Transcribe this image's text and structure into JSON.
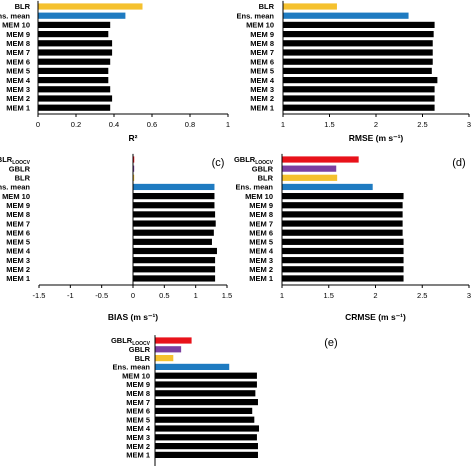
{
  "colors": {
    "GBLR_LOOCV": "#e8121a",
    "GBLR": "#7b3fa0",
    "BLR": "#f5c12e",
    "Ens. mean": "#1f7bc1",
    "MEM": "#000000"
  },
  "chart_data": [
    {
      "type": "bar",
      "orientation": "horizontal",
      "categories": [
        "BLR",
        "Ens. mean",
        "MEM 10",
        "MEM 9",
        "MEM 8",
        "MEM 7",
        "MEM 6",
        "MEM 5",
        "MEM 4",
        "MEM 3",
        "MEM 2",
        "MEM 1"
      ],
      "values": [
        0.55,
        0.46,
        0.38,
        0.37,
        0.39,
        0.39,
        0.38,
        0.37,
        0.37,
        0.38,
        0.39,
        0.38
      ],
      "xlim": [
        0,
        1
      ],
      "xticks": [
        "0",
        "0.2",
        "0.4",
        "0.6",
        "0.8",
        "1"
      ],
      "xlabel": "R²",
      "panel_label": ""
    },
    {
      "type": "bar",
      "orientation": "horizontal",
      "categories": [
        "BLR",
        "Ens. mean",
        "MEM 10",
        "MEM 9",
        "MEM 8",
        "MEM 7",
        "MEM 6",
        "MEM 5",
        "MEM 4",
        "MEM 3",
        "MEM 2",
        "MEM 1"
      ],
      "values": [
        1.58,
        2.35,
        2.63,
        2.62,
        2.61,
        2.61,
        2.61,
        2.6,
        2.66,
        2.63,
        2.63,
        2.63
      ],
      "xlim": [
        1,
        3
      ],
      "xticks": [
        "1",
        "1.5",
        "2",
        "2.5",
        "3"
      ],
      "xlabel": "RMSE (m s⁻¹)",
      "panel_label": ""
    },
    {
      "type": "bar",
      "orientation": "horizontal",
      "categories": [
        "GBLR_LOOCV",
        "GBLR",
        "BLR",
        "Ens. mean",
        "MEM 10",
        "MEM 9",
        "MEM 8",
        "MEM 7",
        "MEM 6",
        "MEM 5",
        "MEM 4",
        "MEM 3",
        "MEM 2",
        "MEM 1"
      ],
      "values": [
        0.02,
        0.01,
        0.01,
        1.3,
        1.3,
        1.3,
        1.31,
        1.32,
        1.29,
        1.26,
        1.34,
        1.31,
        1.31,
        1.31
      ],
      "xlim": [
        -1.5,
        1.5
      ],
      "xticks": [
        "-1.5",
        "-1",
        "-0.5",
        "0",
        "0.5",
        "1",
        "1.5"
      ],
      "xlabel": "BIAS (m s⁻¹)",
      "panel_label": "(c)"
    },
    {
      "type": "bar",
      "orientation": "horizontal",
      "categories": [
        "GBLR_LOOCV",
        "GBLR",
        "BLR",
        "Ens. mean",
        "MEM 10",
        "MEM 9",
        "MEM 8",
        "MEM 7",
        "MEM 6",
        "MEM 5",
        "MEM 4",
        "MEM 3",
        "MEM 2",
        "MEM 1"
      ],
      "values": [
        1.82,
        1.58,
        1.59,
        1.97,
        2.3,
        2.29,
        2.29,
        2.29,
        2.29,
        2.3,
        2.3,
        2.3,
        2.3,
        2.3
      ],
      "xlim": [
        1,
        3
      ],
      "xticks": [
        "1",
        "1.5",
        "2",
        "2.5",
        "3"
      ],
      "xlabel": "CRMSE (m s⁻¹)",
      "panel_label": "(d)"
    },
    {
      "type": "bar",
      "orientation": "horizontal",
      "categories": [
        "GBLR_LOOCV",
        "GBLR",
        "BLR",
        "Ens. mean",
        "MEM 10",
        "MEM 9",
        "MEM 8",
        "MEM 7",
        "MEM 6",
        "MEM 5",
        "MEM 4",
        "MEM 3",
        "MEM 2",
        "MEM 1"
      ],
      "values": [
        0.7,
        0.5,
        0.35,
        1.42,
        1.95,
        1.95,
        1.92,
        1.97,
        1.86,
        1.9,
        1.99,
        1.95,
        1.97,
        1.97
      ],
      "xlim": [
        0,
        2.2
      ],
      "xticks": [],
      "xlabel": "",
      "panel_label": "(e)"
    }
  ]
}
